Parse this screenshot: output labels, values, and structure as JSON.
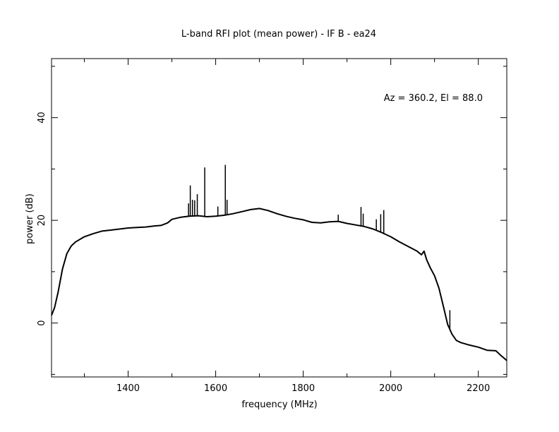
{
  "chart_data": {
    "type": "line",
    "title": "L-band RFI plot (mean power) - IF B - ea24",
    "xlabel": "frequency (MHz)",
    "ylabel": "power (dB)",
    "annotation": "Az = 360.2, El = 88.0",
    "xlim": [
      1225,
      2265
    ],
    "ylim": [
      -10.5,
      51.5
    ],
    "x_ticks": [
      1400,
      1600,
      1800,
      2000,
      2200
    ],
    "y_ticks": [
      0,
      20,
      40
    ],
    "grid": false,
    "series": [
      {
        "color": "#000000",
        "points": [
          [
            1225,
            1.5
          ],
          [
            1232,
            3
          ],
          [
            1240,
            6
          ],
          [
            1250,
            10.5
          ],
          [
            1260,
            13.5
          ],
          [
            1270,
            15
          ],
          [
            1280,
            15.8
          ],
          [
            1300,
            16.8
          ],
          [
            1320,
            17.4
          ],
          [
            1340,
            17.9
          ],
          [
            1360,
            18.1
          ],
          [
            1380,
            18.3
          ],
          [
            1400,
            18.5
          ],
          [
            1420,
            18.6
          ],
          [
            1440,
            18.7
          ],
          [
            1460,
            18.9
          ],
          [
            1475,
            19.0
          ],
          [
            1490,
            19.5
          ],
          [
            1500,
            20.2
          ],
          [
            1520,
            20.6
          ],
          [
            1540,
            20.8
          ],
          [
            1560,
            20.9
          ],
          [
            1580,
            20.7
          ],
          [
            1600,
            20.8
          ],
          [
            1620,
            21.0
          ],
          [
            1640,
            21.3
          ],
          [
            1660,
            21.7
          ],
          [
            1680,
            22.1
          ],
          [
            1700,
            22.3
          ],
          [
            1720,
            21.9
          ],
          [
            1740,
            21.3
          ],
          [
            1760,
            20.8
          ],
          [
            1780,
            20.4
          ],
          [
            1800,
            20.1
          ],
          [
            1820,
            19.6
          ],
          [
            1840,
            19.5
          ],
          [
            1860,
            19.7
          ],
          [
            1880,
            19.8
          ],
          [
            1900,
            19.4
          ],
          [
            1920,
            19.1
          ],
          [
            1940,
            18.8
          ],
          [
            1960,
            18.3
          ],
          [
            1980,
            17.6
          ],
          [
            2000,
            16.8
          ],
          [
            2020,
            15.8
          ],
          [
            2040,
            14.9
          ],
          [
            2060,
            14.0
          ],
          [
            2070,
            13.3
          ],
          [
            2076,
            14.0
          ],
          [
            2082,
            12.3
          ],
          [
            2090,
            10.8
          ],
          [
            2100,
            9.2
          ],
          [
            2110,
            6.8
          ],
          [
            2120,
            3.3
          ],
          [
            2130,
            -0.3
          ],
          [
            2140,
            -2.2
          ],
          [
            2150,
            -3.4
          ],
          [
            2160,
            -3.8
          ],
          [
            2180,
            -4.3
          ],
          [
            2200,
            -4.7
          ],
          [
            2220,
            -5.3
          ],
          [
            2240,
            -5.4
          ],
          [
            2250,
            -6.2
          ],
          [
            2265,
            -7.3
          ]
        ],
        "spikes": [
          [
            1538,
            23.3
          ],
          [
            1542,
            26.8
          ],
          [
            1547,
            24.0
          ],
          [
            1552,
            23.9
          ],
          [
            1558,
            25.1
          ],
          [
            1575,
            30.3
          ],
          [
            1605,
            22.7
          ],
          [
            1622,
            30.8
          ],
          [
            1626,
            24.0
          ],
          [
            1880,
            21.1
          ],
          [
            1932,
            22.6
          ],
          [
            1937,
            21.3
          ],
          [
            1967,
            20.2
          ],
          [
            1977,
            21.2
          ],
          [
            1984,
            22.0
          ],
          [
            2135,
            2.5
          ]
        ]
      }
    ]
  }
}
